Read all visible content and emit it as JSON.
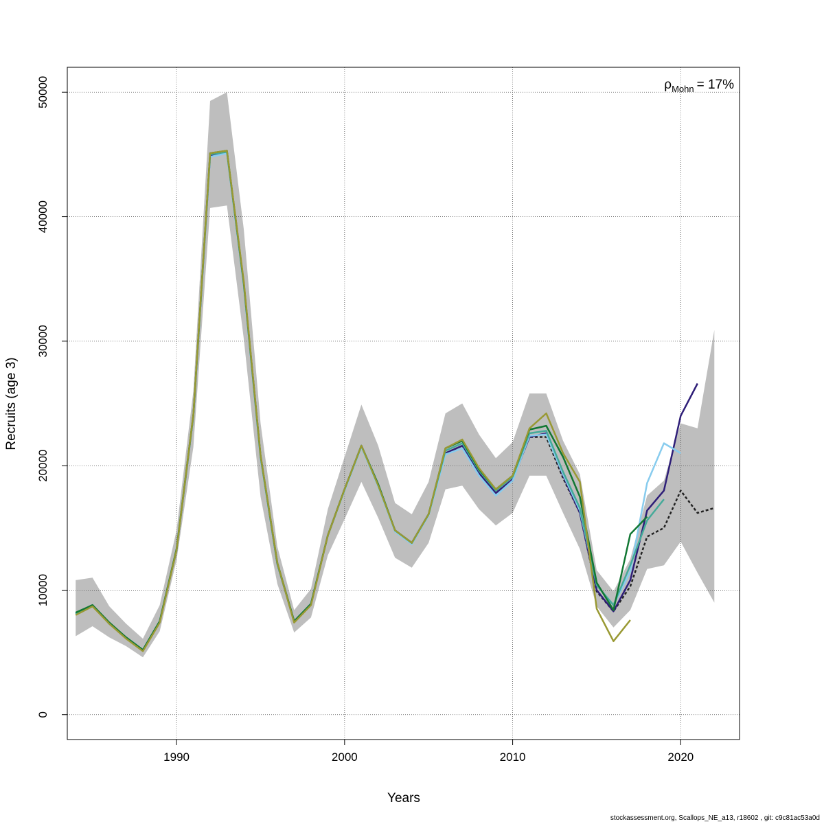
{
  "chart_data": {
    "type": "line",
    "title": "",
    "xlabel": "Years",
    "ylabel": "Recruits (age 3)",
    "xlim": [
      1983.5,
      2023.5
    ],
    "ylim": [
      -2000,
      52000
    ],
    "xticks": [
      1990,
      2000,
      2010,
      2020
    ],
    "yticks": [
      0,
      10000,
      20000,
      30000,
      40000,
      50000
    ],
    "grid": true,
    "annotation": {
      "rho_symbol": "ρ",
      "rho_subscript": "Mohn",
      "rho_value": "= 17%"
    },
    "ci_band": {
      "x": [
        1984,
        1985,
        1986,
        1987,
        1988,
        1989,
        1990,
        1991,
        1992,
        1993,
        1994,
        1995,
        1996,
        1997,
        1998,
        1999,
        2000,
        2001,
        2002,
        2003,
        2004,
        2005,
        2006,
        2007,
        2008,
        2009,
        2010,
        2011,
        2012,
        2013,
        2014,
        2015,
        2016,
        2017,
        2018,
        2019,
        2020,
        2021,
        2022
      ],
      "lower": [
        6300,
        7100,
        6200,
        5500,
        4600,
        6700,
        12400,
        21500,
        40700,
        40900,
        30200,
        17500,
        10500,
        6600,
        7800,
        12800,
        15700,
        18700,
        15800,
        12600,
        11800,
        13800,
        18100,
        18400,
        16500,
        15200,
        16200,
        19200,
        19200,
        16200,
        13300,
        8700,
        7000,
        8400,
        11700,
        12000,
        13900,
        11400,
        9000
      ],
      "upper": [
        10800,
        11000,
        8700,
        7300,
        6100,
        8800,
        14800,
        26000,
        49300,
        50000,
        39000,
        23400,
        13500,
        8400,
        10100,
        16500,
        20700,
        24900,
        21600,
        17000,
        16100,
        18700,
        24200,
        25000,
        22500,
        20600,
        21900,
        25800,
        25800,
        22000,
        19300,
        11600,
        9900,
        12500,
        17600,
        18800,
        23400,
        23000,
        30900
      ]
    },
    "series": [
      {
        "color": "#222222",
        "dashed": true,
        "x": [
          1984,
          1985,
          1986,
          1987,
          1988,
          1989,
          1990,
          1991,
          1992,
          1993,
          1994,
          1995,
          1996,
          1997,
          1998,
          1999,
          2000,
          2001,
          2002,
          2003,
          2004,
          2005,
          2006,
          2007,
          2008,
          2009,
          2010,
          2011,
          2012,
          2013,
          2014,
          2015,
          2016,
          2017,
          2018,
          2019,
          2020,
          2021,
          2022
        ],
        "values": [
          8100,
          8800,
          7300,
          6200,
          5200,
          7500,
          13200,
          24000,
          44900,
          45200,
          34600,
          20700,
          12100,
          7500,
          8900,
          14400,
          18100,
          21600,
          18400,
          14800,
          13800,
          16100,
          21000,
          21600,
          19400,
          17800,
          18900,
          22300,
          22300,
          19000,
          16200,
          9900,
          8300,
          10300,
          14300,
          15000,
          18000,
          16200,
          16600
        ]
      },
      {
        "color": "#2e1e78",
        "dashed": false,
        "x": [
          1984,
          1985,
          1986,
          1987,
          1988,
          1989,
          1990,
          1991,
          1992,
          1993,
          1994,
          1995,
          1996,
          1997,
          1998,
          1999,
          2000,
          2001,
          2002,
          2003,
          2004,
          2005,
          2006,
          2007,
          2008,
          2009,
          2010,
          2011,
          2012,
          2013,
          2014,
          2015,
          2016,
          2017,
          2018,
          2019,
          2020,
          2021
        ],
        "values": [
          8100,
          8800,
          7300,
          6200,
          5200,
          7500,
          13200,
          24000,
          44900,
          45200,
          34600,
          20700,
          12100,
          7500,
          8900,
          14400,
          18100,
          21600,
          18400,
          14800,
          13800,
          16100,
          21000,
          21600,
          19400,
          17800,
          18900,
          22300,
          22600,
          19200,
          16200,
          10000,
          8300,
          10800,
          16400,
          18000,
          24000,
          26600
        ]
      },
      {
        "color": "#88ccee",
        "dashed": false,
        "x": [
          1984,
          1985,
          1986,
          1987,
          1988,
          1989,
          1990,
          1991,
          1992,
          1993,
          1994,
          1995,
          1996,
          1997,
          1998,
          1999,
          2000,
          2001,
          2002,
          2003,
          2004,
          2005,
          2006,
          2007,
          2008,
          2009,
          2010,
          2011,
          2012,
          2013,
          2014,
          2015,
          2016,
          2017,
          2018,
          2019,
          2020
        ],
        "values": [
          8100,
          8800,
          7300,
          6200,
          5200,
          7500,
          13200,
          24000,
          44800,
          45100,
          34500,
          20600,
          12100,
          7500,
          8900,
          14400,
          18000,
          21500,
          18300,
          14700,
          13700,
          16000,
          20900,
          21400,
          19200,
          17600,
          18800,
          22400,
          22500,
          19300,
          16400,
          10400,
          8800,
          11500,
          18600,
          21800,
          21000
        ]
      },
      {
        "color": "#44aa99",
        "dashed": false,
        "x": [
          1984,
          1985,
          1986,
          1987,
          1988,
          1989,
          1990,
          1991,
          1992,
          1993,
          1994,
          1995,
          1996,
          1997,
          1998,
          1999,
          2000,
          2001,
          2002,
          2003,
          2004,
          2005,
          2006,
          2007,
          2008,
          2009,
          2010,
          2011,
          2012,
          2013,
          2014,
          2015,
          2016,
          2017,
          2018,
          2019
        ],
        "values": [
          8100,
          8800,
          7300,
          6200,
          5200,
          7500,
          13200,
          24000,
          45000,
          45200,
          34600,
          20700,
          12100,
          7500,
          8900,
          14400,
          18100,
          21600,
          18500,
          14800,
          13800,
          16100,
          21200,
          21800,
          19600,
          18000,
          19100,
          22600,
          22800,
          19500,
          16600,
          10400,
          8800,
          12000,
          15600,
          17300
        ]
      },
      {
        "color": "#117733",
        "dashed": false,
        "x": [
          1984,
          1985,
          1986,
          1987,
          1988,
          1989,
          1990,
          1991,
          1992,
          1993,
          1994,
          1995,
          1996,
          1997,
          1998,
          1999,
          2000,
          2001,
          2002,
          2003,
          2004,
          2005,
          2006,
          2007,
          2008,
          2009,
          2010,
          2011,
          2012,
          2013,
          2014,
          2015,
          2016,
          2017,
          2018
        ],
        "values": [
          8200,
          8800,
          7400,
          6200,
          5200,
          7500,
          13300,
          24100,
          45100,
          45300,
          34700,
          20800,
          12200,
          7500,
          8900,
          14400,
          18100,
          21600,
          18500,
          14800,
          13800,
          16100,
          21400,
          22000,
          19700,
          18100,
          19200,
          22900,
          23200,
          20700,
          17500,
          10600,
          8400,
          14500,
          15900
        ]
      },
      {
        "color": "#999933",
        "dashed": false,
        "x": [
          1984,
          1985,
          1986,
          1987,
          1988,
          1989,
          1990,
          1991,
          1992,
          1993,
          1994,
          1995,
          1996,
          1997,
          1998,
          1999,
          2000,
          2001,
          2002,
          2003,
          2004,
          2005,
          2006,
          2007,
          2008,
          2009,
          2010,
          2011,
          2012,
          2013,
          2014,
          2015,
          2016,
          2017
        ],
        "values": [
          8000,
          8700,
          7300,
          6100,
          5100,
          7400,
          13200,
          24100,
          45100,
          45300,
          34800,
          20800,
          12200,
          7400,
          8800,
          14400,
          18100,
          21600,
          18400,
          14800,
          13800,
          16100,
          21400,
          22100,
          19800,
          18100,
          19200,
          23000,
          24200,
          21000,
          18700,
          8500,
          5900,
          7600
        ]
      }
    ]
  },
  "footer": "stockassessment.org, Scallops_NE_a13, r18602 , git: c9c81ac53a0d"
}
